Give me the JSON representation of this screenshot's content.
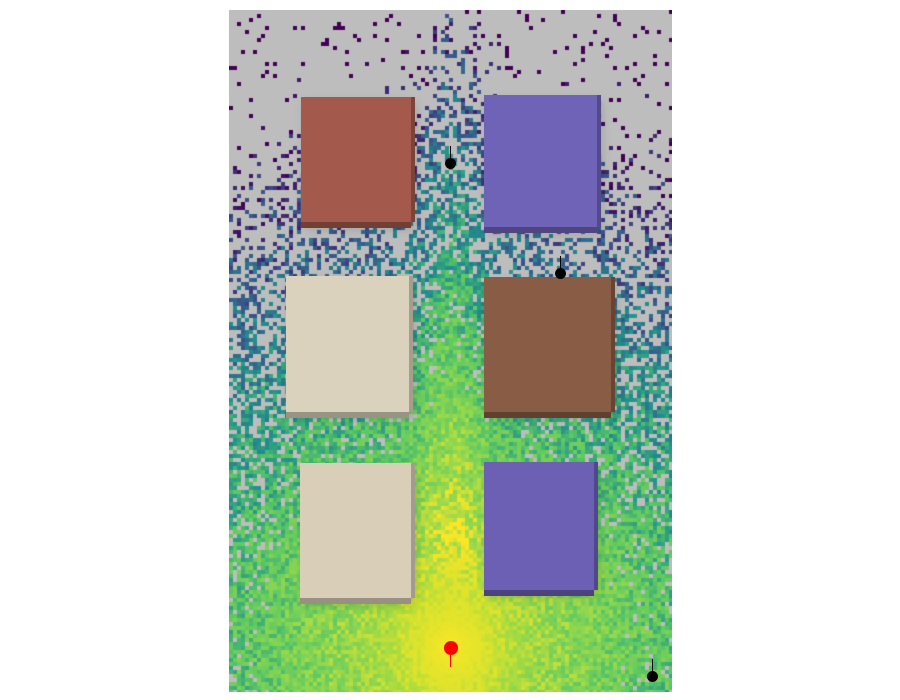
{
  "scene": {
    "background_color": "#bdbdbd",
    "heat_colors": [
      "#440154",
      "#3b528b",
      "#21918c",
      "#5ec962",
      "#9ad94b",
      "#fde725"
    ],
    "blocks": [
      {
        "name": "block-terracotta-top-left",
        "color": "#a35a4c"
      },
      {
        "name": "block-purple-top-right",
        "color": "#6f63b8"
      },
      {
        "name": "block-beige-middle-left",
        "color": "#dbd2bd"
      },
      {
        "name": "block-brown-middle-right",
        "color": "#895c45"
      },
      {
        "name": "block-beige-bottom-left",
        "color": "#d9cfb9"
      },
      {
        "name": "block-purple-bottom-right",
        "color": "#6c60b4"
      }
    ],
    "markers": [
      {
        "name": "receiver-marker",
        "color": "#000000"
      },
      {
        "name": "receiver-marker",
        "color": "#000000"
      },
      {
        "name": "receiver-marker",
        "color": "#000000"
      },
      {
        "name": "source-marker",
        "color": "#ff0000"
      }
    ]
  }
}
